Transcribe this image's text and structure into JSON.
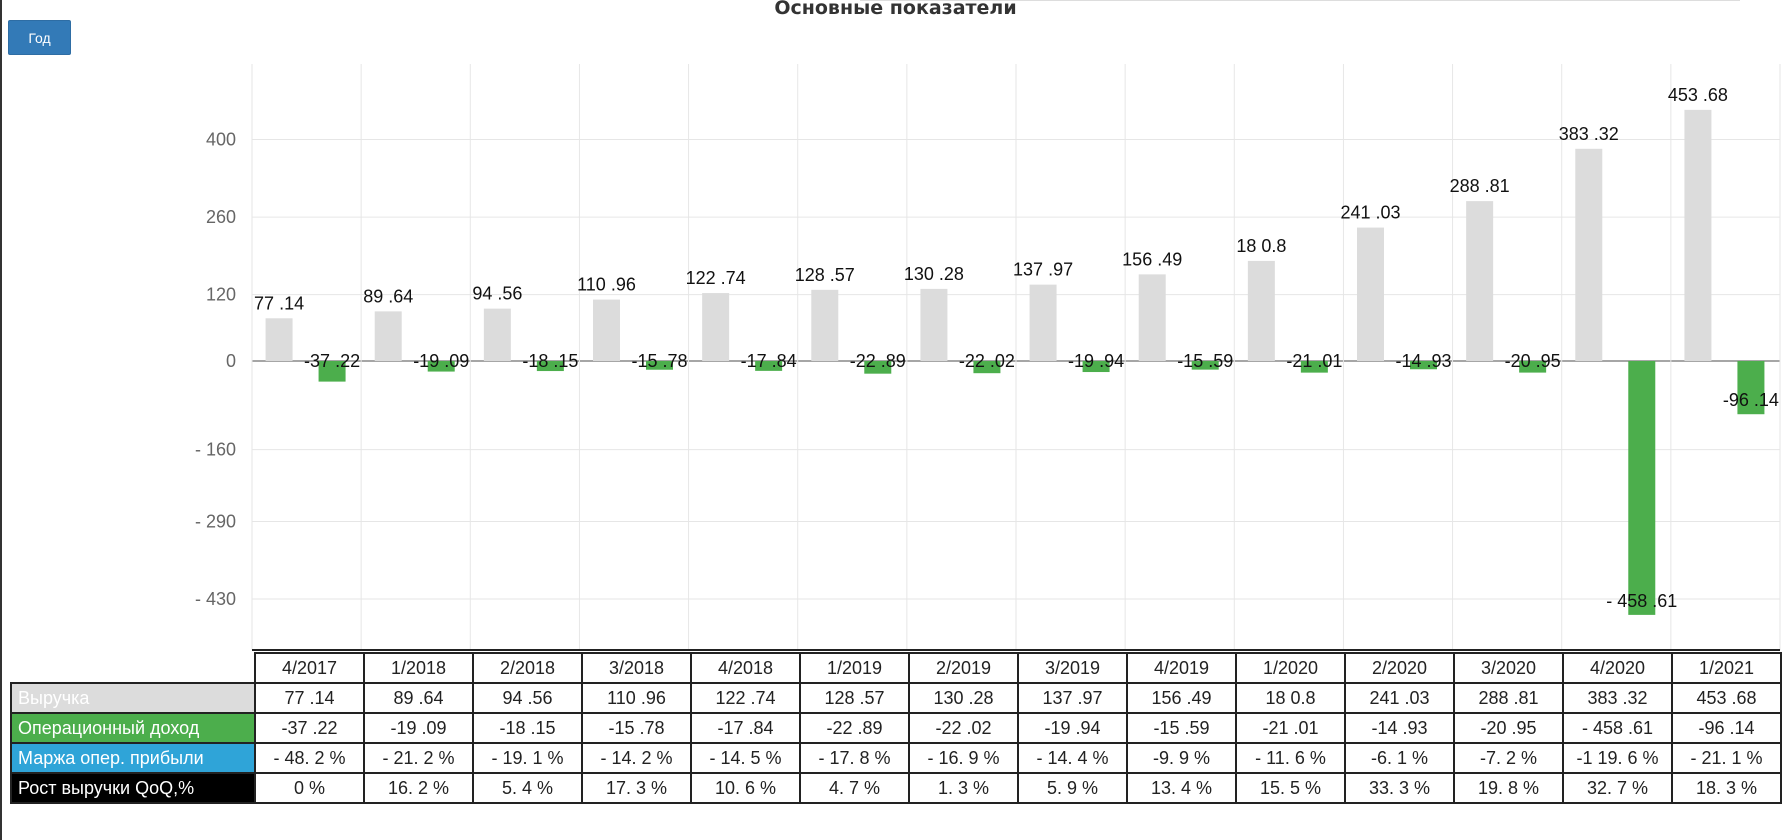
{
  "title": "Основные показатели",
  "button": {
    "label": "Год"
  },
  "colors": {
    "revenue": "#dcdcdc",
    "op_income": "#4cae4c",
    "margin": "#2fa4d8",
    "growth": "#000000",
    "button": "#337ab7"
  },
  "chart_data": {
    "type": "bar",
    "categories": [
      "4/2017",
      "1/2018",
      "2/2018",
      "3/2018",
      "4/2018",
      "1/2019",
      "2/2019",
      "3/2019",
      "4/2019",
      "1/2020",
      "2/2020",
      "3/2020",
      "4/2020",
      "1/2021"
    ],
    "series": [
      {
        "name": "Выручка",
        "values": [
          77.14,
          89.64,
          94.56,
          110.96,
          122.74,
          128.57,
          130.28,
          137.97,
          156.49,
          180.8,
          241.03,
          288.81,
          383.32,
          453.68
        ],
        "labels": [
          "77 .14",
          "89 .64",
          "94 .56",
          "110 .96",
          "122 .74",
          "128 .57",
          "130 .28",
          "137 .97",
          "156 .49",
          "18 0.8",
          "241 .03",
          "288 .81",
          "383 .32",
          "453 .68"
        ]
      },
      {
        "name": "Операционный доход",
        "values": [
          -37.22,
          -19.09,
          -18.15,
          -15.78,
          -17.84,
          -22.89,
          -22.02,
          -19.94,
          -15.59,
          -21.01,
          -14.93,
          -20.95,
          -458.61,
          -96.14
        ],
        "labels": [
          "-37 .22",
          "-19 .09",
          "-18 .15",
          "-15 .78",
          "-17 .84",
          "-22 .89",
          "-22 .02",
          "-19 .94",
          "-15 .59",
          "-21 .01",
          "-14 .93",
          "-20 .95",
          "- 458 .61",
          "-96 .14"
        ]
      }
    ],
    "yticks": [
      "400",
      "260",
      "120",
      "0",
      "- 160",
      "- 290",
      "- 430"
    ],
    "ylim": [
      -550,
      520
    ],
    "grid": true,
    "table_rows": [
      {
        "label": "Выручка",
        "values": [
          "77 .14",
          "89 .64",
          "94 .56",
          "110 .96",
          "122 .74",
          "128 .57",
          "130 .28",
          "137 .97",
          "156 .49",
          "18 0.8",
          "241 .03",
          "288 .81",
          "383 .32",
          "453 .68"
        ]
      },
      {
        "label": "Операционный доход",
        "values": [
          "-37 .22",
          "-19 .09",
          "-18 .15",
          "-15 .78",
          "-17 .84",
          "-22 .89",
          "-22 .02",
          "-19 .94",
          "-15 .59",
          "-21 .01",
          "-14 .93",
          "-20 .95",
          "- 458 .61",
          "-96 .14"
        ]
      },
      {
        "label": "Маржа опер. прибыли",
        "values": [
          "- 48. 2 %",
          "- 21. 2 %",
          "- 19. 1 %",
          "- 14. 2 %",
          "- 14. 5 %",
          "- 17. 8 %",
          "- 16. 9 %",
          "- 14. 4 %",
          "-9. 9 %",
          "- 11. 6 %",
          "-6. 1 %",
          "-7. 2 %",
          "-1 19. 6 %",
          "- 21. 1 %"
        ]
      },
      {
        "label": "Рост выручки QoQ,%",
        "values": [
          "0 %",
          "16. 2 %",
          "5. 4 %",
          "17. 3 %",
          "10. 6 %",
          "4. 7 %",
          "1. 3 %",
          "5. 9 %",
          "13. 4 %",
          "15. 5 %",
          "33. 3 %",
          "19. 8 %",
          "32. 7 %",
          "18. 3 %"
        ]
      }
    ]
  }
}
